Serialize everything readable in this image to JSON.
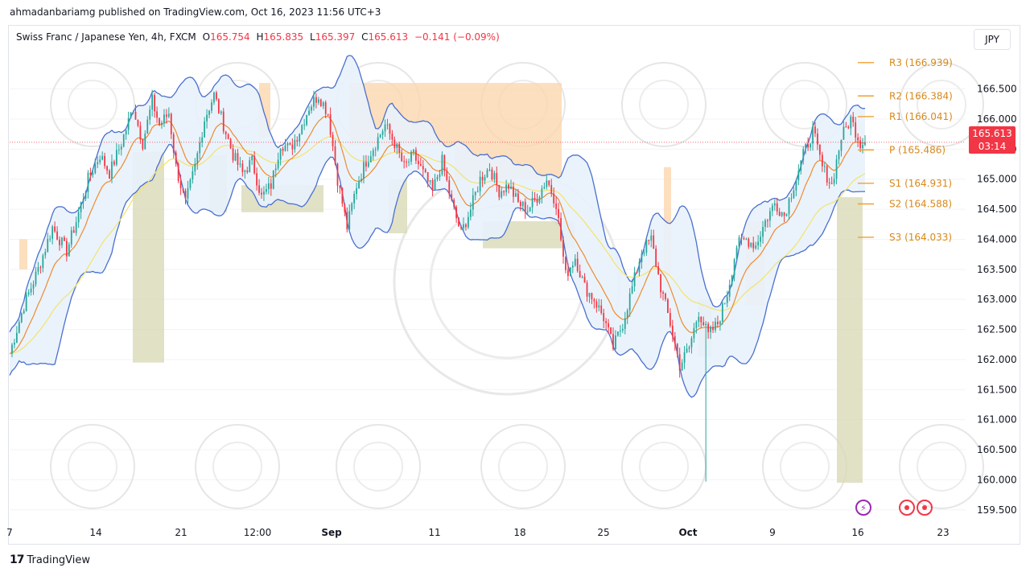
{
  "header": {
    "caption": "ahmadanbariamg published on TradingView.com, Oct 16, 2023 11:56 UTC+3"
  },
  "legend": {
    "symbol": "Swiss Franc / Japanese Yen, 4h, FXCM",
    "open_label": "O",
    "open": "165.754",
    "high_label": "H",
    "high": "165.835",
    "low_label": "L",
    "low": "165.397",
    "close_label": "C",
    "close": "165.613",
    "change": "−0.141 (−0.09%)"
  },
  "currency_button": "JPY",
  "price_badge": {
    "price": "165.613",
    "countdown": "03:14"
  },
  "footer": {
    "logo": "17",
    "brand": "TradingView"
  },
  "events": {
    "flash_icon": "lightning-icon"
  },
  "colors": {
    "up": "#26a69a",
    "down": "#f23645",
    "bb": "#4a6fd0",
    "bb_fill": "#e8f2fb",
    "ema_fast": "#ee8a30",
    "ema_slow": "#f2e36b",
    "pivot": "#f0a030",
    "supply_zone": "#fbd7ae",
    "demand_zone": "#d9d9b8",
    "grid": "#f0f3fa"
  },
  "chart_data": {
    "type": "candlestick",
    "ylim": [
      159.35,
      167.15
    ],
    "y_ticks": [
      "166.500",
      "166.000",
      "165.500",
      "165.000",
      "164.500",
      "164.000",
      "163.500",
      "163.000",
      "162.500",
      "162.000",
      "161.500",
      "161.000",
      "160.500",
      "160.000",
      "159.500"
    ],
    "x_ticks": [
      {
        "label": "7",
        "bold": false
      },
      {
        "label": "14",
        "bold": false
      },
      {
        "label": "21",
        "bold": false
      },
      {
        "label": "12:00",
        "bold": false
      },
      {
        "label": "Sep",
        "bold": true
      },
      {
        "label": "11",
        "bold": false
      },
      {
        "label": "18",
        "bold": false
      },
      {
        "label": "25",
        "bold": false
      },
      {
        "label": "Oct",
        "bold": true
      },
      {
        "label": "9",
        "bold": false
      },
      {
        "label": "16",
        "bold": false
      },
      {
        "label": "23",
        "bold": false
      }
    ],
    "pivots": [
      {
        "label": "R3 (166.939)",
        "value": 166.939
      },
      {
        "label": "R2 (166.384)",
        "value": 166.384
      },
      {
        "label": "R1 (166.041)",
        "value": 166.041
      },
      {
        "label": "P (165.486)",
        "value": 165.486
      },
      {
        "label": "S1 (164.931)",
        "value": 164.931
      },
      {
        "label": "S2 (164.588)",
        "value": 164.588
      },
      {
        "label": "S3 (164.033)",
        "value": 164.033
      }
    ],
    "last_price": 165.613,
    "price_path": [
      [
        0,
        162.1
      ],
      [
        6,
        162.9
      ],
      [
        12,
        163.5
      ],
      [
        18,
        164.2
      ],
      [
        24,
        163.8
      ],
      [
        28,
        164.3
      ],
      [
        33,
        165.0
      ],
      [
        38,
        165.4
      ],
      [
        42,
        165.1
      ],
      [
        47,
        165.6
      ],
      [
        52,
        166.2
      ],
      [
        56,
        165.6
      ],
      [
        60,
        166.3
      ],
      [
        63,
        165.9
      ],
      [
        67,
        166.1
      ],
      [
        70,
        165.2
      ],
      [
        74,
        164.6
      ],
      [
        78,
        165.2
      ],
      [
        82,
        166.0
      ],
      [
        86,
        166.4
      ],
      [
        90,
        165.9
      ],
      [
        94,
        165.4
      ],
      [
        98,
        165.1
      ],
      [
        102,
        165.3
      ],
      [
        106,
        164.7
      ],
      [
        110,
        164.9
      ],
      [
        114,
        165.6
      ],
      [
        118,
        165.5
      ],
      [
        122,
        165.8
      ],
      [
        126,
        166.2
      ],
      [
        130,
        166.4
      ],
      [
        134,
        166.1
      ],
      [
        138,
        165.0
      ],
      [
        142,
        164.2
      ],
      [
        146,
        164.9
      ],
      [
        150,
        165.3
      ],
      [
        154,
        165.6
      ],
      [
        158,
        165.9
      ],
      [
        162,
        165.6
      ],
      [
        166,
        165.2
      ],
      [
        170,
        165.4
      ],
      [
        174,
        165.1
      ],
      [
        178,
        164.8
      ],
      [
        182,
        165.3
      ],
      [
        186,
        164.6
      ],
      [
        190,
        164.1
      ],
      [
        194,
        164.5
      ],
      [
        198,
        165.0
      ],
      [
        202,
        165.2
      ],
      [
        206,
        164.8
      ],
      [
        210,
        164.9
      ],
      [
        214,
        164.6
      ],
      [
        218,
        164.5
      ],
      [
        222,
        164.7
      ],
      [
        226,
        165.0
      ],
      [
        230,
        164.6
      ],
      [
        234,
        163.4
      ],
      [
        238,
        163.7
      ],
      [
        242,
        163.2
      ],
      [
        246,
        163.0
      ],
      [
        250,
        162.7
      ],
      [
        254,
        162.2
      ],
      [
        258,
        162.6
      ],
      [
        262,
        163.2
      ],
      [
        266,
        163.8
      ],
      [
        270,
        164.0
      ],
      [
        274,
        163.2
      ],
      [
        278,
        162.6
      ],
      [
        282,
        161.9
      ],
      [
        286,
        162.2
      ],
      [
        290,
        162.8
      ],
      [
        294,
        162.4
      ],
      [
        298,
        162.6
      ],
      [
        302,
        163.1
      ],
      [
        306,
        163.9
      ],
      [
        310,
        164.0
      ],
      [
        314,
        163.9
      ],
      [
        318,
        164.3
      ],
      [
        322,
        164.6
      ],
      [
        326,
        164.4
      ],
      [
        330,
        164.9
      ],
      [
        334,
        165.4
      ],
      [
        338,
        165.8
      ],
      [
        342,
        165.2
      ],
      [
        346,
        164.9
      ],
      [
        350,
        165.7
      ],
      [
        354,
        166.0
      ],
      [
        358,
        165.6
      ]
    ],
    "notable_wick_low": 159.97,
    "indicators": [
      "Bollinger Bands",
      "EMA (fast)",
      "EMA (slow)",
      "Standard Pivot Points",
      "Supply/Demand zones"
    ]
  }
}
